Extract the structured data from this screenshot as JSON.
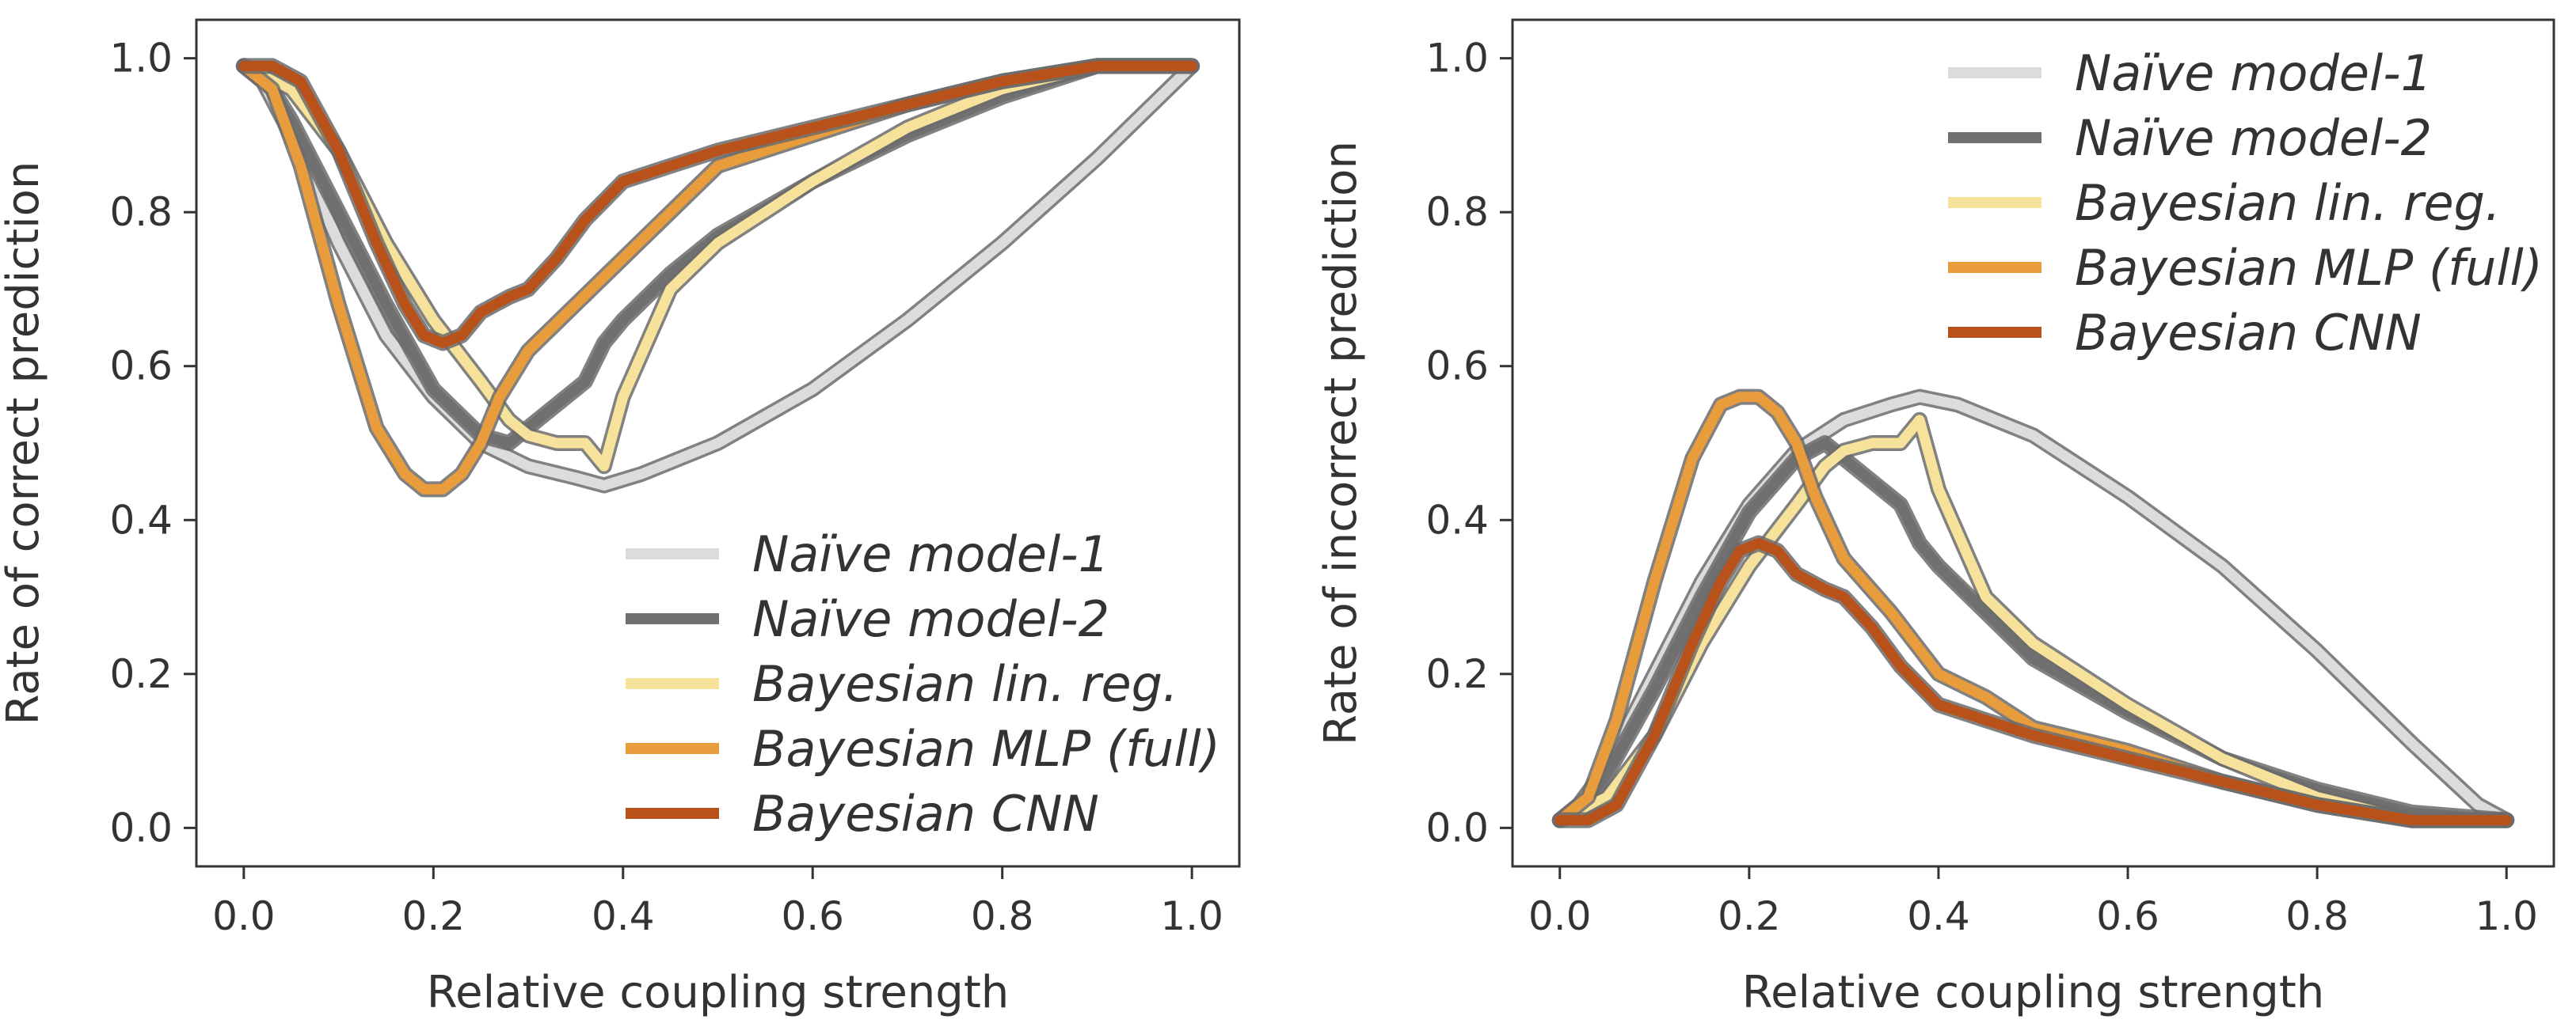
{
  "colors": {
    "naive1": "#dcdcdc",
    "naive2": "#707070",
    "linreg": "#f7e29b",
    "mlp": "#e89c3c",
    "cnn": "#b8521a",
    "axes": "#333333"
  },
  "chart_data": [
    {
      "type": "line",
      "xlabel": "Relative coupling strength",
      "ylabel": "Rate of correct prediction",
      "xlim": [
        -0.05,
        1.05
      ],
      "ylim": [
        -0.05,
        1.05
      ],
      "xticks": [
        0.0,
        0.2,
        0.4,
        0.6,
        0.8,
        1.0
      ],
      "yticks": [
        0.0,
        0.2,
        0.4,
        0.6,
        0.8,
        1.0
      ],
      "xtick_labels": [
        "0.0",
        "0.2",
        "0.4",
        "0.6",
        "0.8",
        "1.0"
      ],
      "ytick_labels": [
        "0.0",
        "0.2",
        "0.4",
        "0.6",
        "0.8",
        "1.0"
      ],
      "grid": false,
      "legend": "bottom-right",
      "series": [
        {
          "name": "Naïve model-1",
          "color_key": "naive1",
          "x": [
            0,
            0.02,
            0.05,
            0.1,
            0.15,
            0.2,
            0.25,
            0.3,
            0.35,
            0.38,
            0.42,
            0.5,
            0.6,
            0.7,
            0.8,
            0.9,
            1.0
          ],
          "y": [
            0.99,
            0.97,
            0.9,
            0.76,
            0.64,
            0.56,
            0.5,
            0.47,
            0.455,
            0.445,
            0.46,
            0.5,
            0.57,
            0.66,
            0.76,
            0.87,
            0.99
          ]
        },
        {
          "name": "Naïve model-2",
          "color_key": "naive2",
          "x": [
            0,
            0.02,
            0.05,
            0.1,
            0.15,
            0.2,
            0.25,
            0.28,
            0.3,
            0.33,
            0.36,
            0.38,
            0.4,
            0.45,
            0.5,
            0.6,
            0.7,
            0.8,
            0.9,
            1.0
          ],
          "y": [
            0.99,
            0.98,
            0.92,
            0.8,
            0.68,
            0.57,
            0.51,
            0.5,
            0.52,
            0.55,
            0.58,
            0.63,
            0.66,
            0.72,
            0.77,
            0.84,
            0.9,
            0.95,
            0.99,
            0.99
          ]
        },
        {
          "name": "Bayesian lin. reg.",
          "color_key": "linreg",
          "x": [
            0,
            0.05,
            0.1,
            0.15,
            0.2,
            0.25,
            0.28,
            0.3,
            0.33,
            0.36,
            0.38,
            0.4,
            0.45,
            0.5,
            0.6,
            0.7,
            0.8,
            0.9,
            1.0
          ],
          "y": [
            0.99,
            0.96,
            0.88,
            0.76,
            0.66,
            0.58,
            0.53,
            0.51,
            0.5,
            0.5,
            0.47,
            0.56,
            0.7,
            0.76,
            0.84,
            0.91,
            0.96,
            0.99,
            0.99
          ]
        },
        {
          "name": "Bayesian MLP (full)",
          "color_key": "mlp",
          "x": [
            0,
            0.03,
            0.06,
            0.1,
            0.14,
            0.17,
            0.19,
            0.21,
            0.23,
            0.25,
            0.27,
            0.3,
            0.35,
            0.4,
            0.45,
            0.5,
            0.6,
            0.7,
            0.8,
            0.9,
            1.0
          ],
          "y": [
            0.99,
            0.96,
            0.86,
            0.68,
            0.52,
            0.46,
            0.44,
            0.44,
            0.46,
            0.5,
            0.56,
            0.62,
            0.68,
            0.74,
            0.8,
            0.86,
            0.9,
            0.94,
            0.97,
            0.99,
            0.99
          ]
        },
        {
          "name": "Bayesian CNN",
          "color_key": "cnn",
          "x": [
            0,
            0.03,
            0.06,
            0.1,
            0.14,
            0.17,
            0.19,
            0.21,
            0.23,
            0.25,
            0.28,
            0.3,
            0.33,
            0.36,
            0.4,
            0.45,
            0.5,
            0.6,
            0.7,
            0.8,
            0.9,
            1.0
          ],
          "y": [
            0.99,
            0.99,
            0.97,
            0.88,
            0.76,
            0.68,
            0.64,
            0.63,
            0.64,
            0.67,
            0.69,
            0.7,
            0.74,
            0.79,
            0.84,
            0.86,
            0.88,
            0.91,
            0.94,
            0.97,
            0.99,
            0.99
          ]
        }
      ]
    },
    {
      "type": "line",
      "xlabel": "Relative coupling strength",
      "ylabel": "Rate of incorrect prediction",
      "xlim": [
        -0.05,
        1.05
      ],
      "ylim": [
        -0.05,
        1.05
      ],
      "xticks": [
        0.0,
        0.2,
        0.4,
        0.6,
        0.8,
        1.0
      ],
      "yticks": [
        0.0,
        0.2,
        0.4,
        0.6,
        0.8,
        1.0
      ],
      "xtick_labels": [
        "0.0",
        "0.2",
        "0.4",
        "0.6",
        "0.8",
        "1.0"
      ],
      "ytick_labels": [
        "0.0",
        "0.2",
        "0.4",
        "0.6",
        "0.8",
        "1.0"
      ],
      "grid": false,
      "legend": "top-right",
      "series": [
        {
          "name": "Naïve model-1",
          "color_key": "naive1",
          "x": [
            0,
            0.02,
            0.05,
            0.1,
            0.15,
            0.2,
            0.25,
            0.3,
            0.35,
            0.38,
            0.42,
            0.5,
            0.6,
            0.7,
            0.8,
            0.9,
            0.97,
            1.0
          ],
          "y": [
            0.01,
            0.03,
            0.08,
            0.2,
            0.32,
            0.42,
            0.49,
            0.53,
            0.55,
            0.56,
            0.55,
            0.51,
            0.43,
            0.34,
            0.23,
            0.11,
            0.03,
            0.01
          ]
        },
        {
          "name": "Naïve model-2",
          "color_key": "naive2",
          "x": [
            0,
            0.02,
            0.05,
            0.1,
            0.15,
            0.2,
            0.25,
            0.28,
            0.3,
            0.33,
            0.36,
            0.38,
            0.4,
            0.45,
            0.5,
            0.6,
            0.7,
            0.8,
            0.9,
            1.0
          ],
          "y": [
            0.01,
            0.02,
            0.07,
            0.18,
            0.3,
            0.41,
            0.48,
            0.5,
            0.48,
            0.45,
            0.42,
            0.37,
            0.34,
            0.28,
            0.22,
            0.15,
            0.09,
            0.05,
            0.02,
            0.01
          ]
        },
        {
          "name": "Bayesian lin. reg.",
          "color_key": "linreg",
          "x": [
            0,
            0.05,
            0.1,
            0.15,
            0.2,
            0.25,
            0.28,
            0.3,
            0.33,
            0.36,
            0.38,
            0.4,
            0.45,
            0.5,
            0.6,
            0.7,
            0.8,
            0.9,
            1.0
          ],
          "y": [
            0.01,
            0.04,
            0.12,
            0.24,
            0.34,
            0.42,
            0.47,
            0.49,
            0.5,
            0.5,
            0.53,
            0.44,
            0.3,
            0.24,
            0.16,
            0.09,
            0.04,
            0.01,
            0.01
          ]
        },
        {
          "name": "Bayesian MLP (full)",
          "color_key": "mlp",
          "x": [
            0,
            0.03,
            0.06,
            0.1,
            0.14,
            0.17,
            0.19,
            0.21,
            0.23,
            0.25,
            0.27,
            0.3,
            0.35,
            0.4,
            0.45,
            0.5,
            0.6,
            0.7,
            0.8,
            0.9,
            1.0
          ],
          "y": [
            0.01,
            0.04,
            0.14,
            0.32,
            0.48,
            0.55,
            0.56,
            0.56,
            0.54,
            0.5,
            0.43,
            0.35,
            0.28,
            0.2,
            0.17,
            0.13,
            0.1,
            0.06,
            0.03,
            0.01,
            0.01
          ]
        },
        {
          "name": "Bayesian CNN",
          "color_key": "cnn",
          "x": [
            0,
            0.03,
            0.06,
            0.1,
            0.14,
            0.17,
            0.19,
            0.21,
            0.23,
            0.25,
            0.28,
            0.3,
            0.33,
            0.36,
            0.4,
            0.45,
            0.5,
            0.6,
            0.7,
            0.8,
            0.9,
            1.0
          ],
          "y": [
            0.01,
            0.01,
            0.03,
            0.12,
            0.24,
            0.32,
            0.36,
            0.37,
            0.36,
            0.33,
            0.31,
            0.3,
            0.26,
            0.21,
            0.16,
            0.14,
            0.12,
            0.09,
            0.06,
            0.03,
            0.01,
            0.01
          ]
        }
      ]
    }
  ]
}
